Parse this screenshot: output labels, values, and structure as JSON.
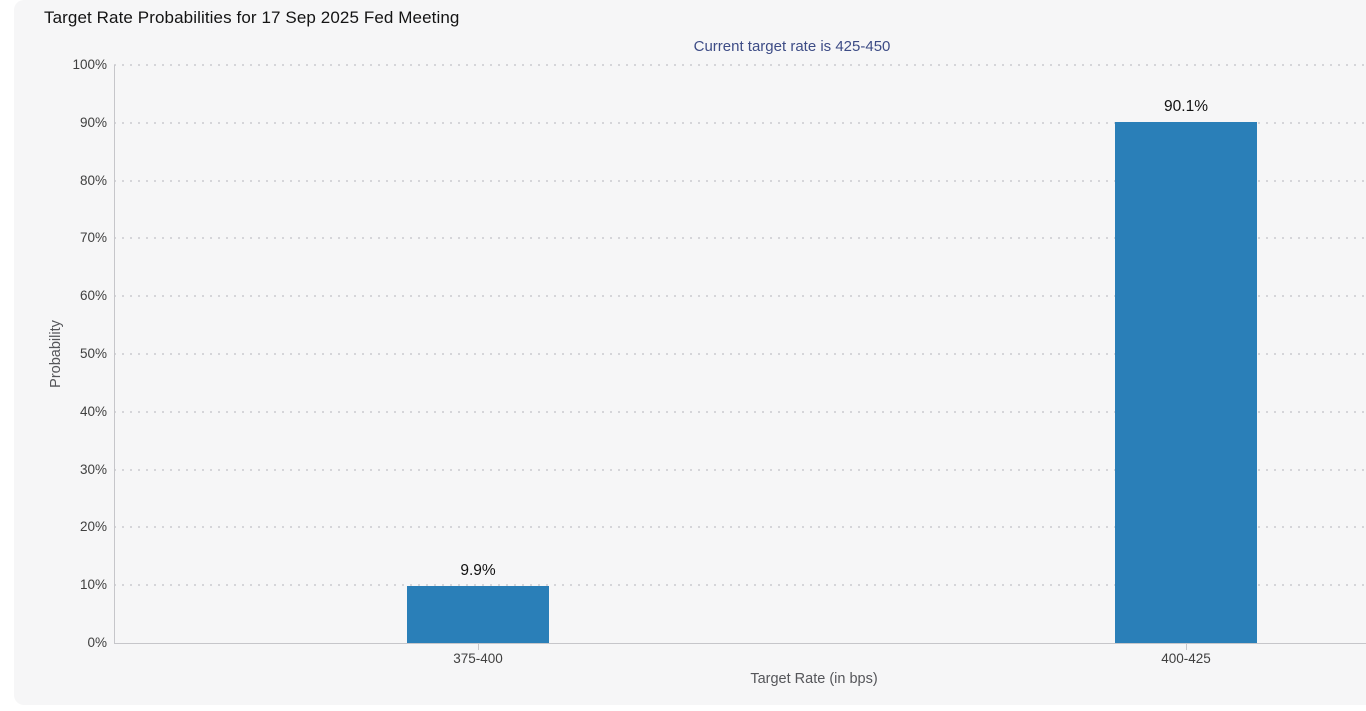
{
  "chart_data": {
    "type": "bar",
    "title": "Target Rate Probabilities for 17 Sep 2025 Fed Meeting",
    "subtitle": "Current target rate is 425-450",
    "categories": [
      "375-400",
      "400-425"
    ],
    "values": [
      9.9,
      90.1
    ],
    "data_labels": [
      "9.9%",
      "90.1%"
    ],
    "xlabel": "Target Rate (in bps)",
    "ylabel": "Probability",
    "ylim": [
      0,
      100
    ],
    "ytick_step": 10,
    "ytick_labels": [
      "0%",
      "10%",
      "20%",
      "30%",
      "40%",
      "50%",
      "60%",
      "70%",
      "80%",
      "90%",
      "100%"
    ],
    "grid": "horizontal-dotted",
    "legend": "none",
    "colors": {
      "bar": "#2a7fb8",
      "title": "#141414",
      "subtitle": "#3d4c86",
      "card_background": "#f6f6f7",
      "page_background": "#ffffff",
      "grid_dots": "#d5d5d9",
      "axis_line": "#c6c6ca",
      "tick_label": "#404040",
      "axis_title": "#55565a",
      "data_label": "#111111"
    }
  }
}
